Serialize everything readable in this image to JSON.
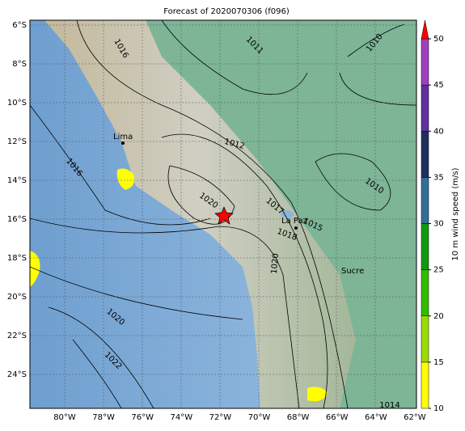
{
  "title": "Forecast of 2020070306 (f096)",
  "lat_labels": [
    "6°S",
    "8°S",
    "10°S",
    "12°S",
    "14°S",
    "16°S",
    "18°S",
    "20°S",
    "22°S",
    "24°S"
  ],
  "lon_labels": [
    "80°W",
    "78°W",
    "76°W",
    "74°W",
    "72°W",
    "70°W",
    "68°W",
    "66°W",
    "64°W",
    "62°W"
  ],
  "places": [
    "Lima",
    "La Paz",
    "Sucre"
  ],
  "contour_labels": [
    "1016",
    "1011",
    "1010",
    "1012",
    "1010",
    "1016",
    "1020",
    "1017",
    "1015",
    "1018",
    "1020",
    "1020",
    "1022",
    "1014"
  ],
  "colorbar": {
    "label": "10 m wind speed (m/s)",
    "ticks": [
      10,
      15,
      20,
      25,
      30,
      35,
      40,
      45,
      50
    ],
    "colors": [
      "#ffff00",
      "#99dd00",
      "#33bb00",
      "#119911",
      "#336e99",
      "#1f2f5e",
      "#6030a0",
      "#a040c0"
    ],
    "extend_color": "#ff0000",
    "range": [
      10,
      50
    ]
  }
}
